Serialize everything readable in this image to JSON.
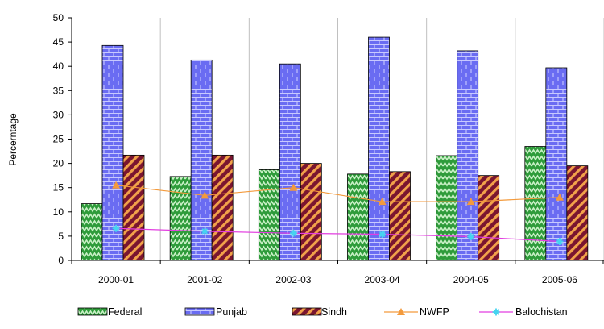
{
  "chart_data": {
    "type": "bar",
    "title": "",
    "xlabel": "",
    "ylabel": "Percerntage",
    "ylim": [
      0,
      50
    ],
    "yticks": [
      0,
      5,
      10,
      15,
      20,
      25,
      30,
      35,
      40,
      45,
      50
    ],
    "grid": "vertical",
    "legend_position": "bottom",
    "categories": [
      "2000-01",
      "2001-02",
      "2002-03",
      "2003-04",
      "2004-05",
      "2005-06"
    ],
    "series": [
      {
        "name": "Federal",
        "kind": "bar",
        "pattern": "zigzag",
        "color": "#2e9b3a",
        "values": [
          11.7,
          17.3,
          18.7,
          17.8,
          21.6,
          23.5
        ]
      },
      {
        "name": "Punjab",
        "kind": "bar",
        "pattern": "bricks",
        "color": "#6a6cf2",
        "values": [
          44.3,
          41.3,
          40.5,
          46.0,
          43.2,
          39.7
        ]
      },
      {
        "name": "Sindh",
        "kind": "bar",
        "pattern": "diagonal-stripes",
        "color": "#7a1530",
        "values": [
          21.7,
          21.7,
          20.0,
          18.3,
          17.5,
          19.5
        ]
      },
      {
        "name": "NWFP",
        "kind": "line",
        "marker": "triangle",
        "color": "#f39a3c",
        "values": [
          15.5,
          13.4,
          15.0,
          12.1,
          12.1,
          13.0
        ]
      },
      {
        "name": "Balochistan",
        "kind": "line",
        "marker": "star",
        "color": "#e23de0",
        "marker_color": "#46d4f0",
        "values": [
          6.6,
          6.0,
          5.6,
          5.4,
          4.9,
          3.9
        ]
      }
    ]
  }
}
